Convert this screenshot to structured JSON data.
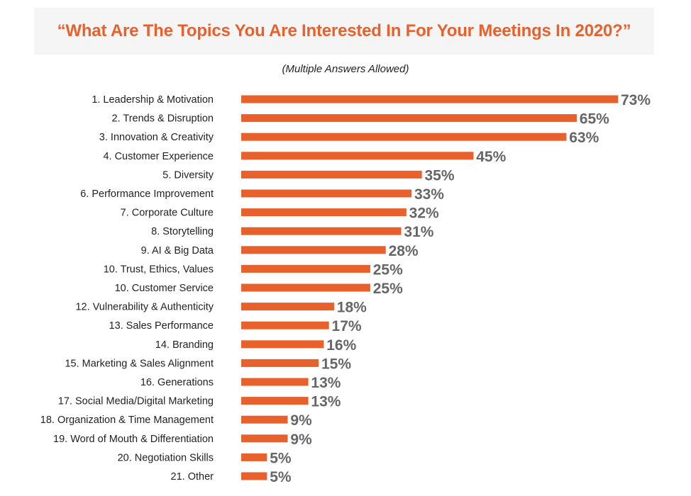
{
  "chart_data": {
    "type": "bar",
    "orientation": "horizontal",
    "title": "“What Are The Topics You Are Interested In For Your Meetings In 2020?”",
    "subtitle": "(Multiple Answers Allowed)",
    "categories": [
      "1. Leadership & Motivation",
      "2. Trends & Disruption",
      "3. Innovation & Creativity",
      "4. Customer Experience",
      "5. Diversity",
      "6. Performance Improvement",
      "7. Corporate Culture",
      "8. Storytelling",
      "9. AI & Big Data",
      "10. Trust, Ethics, Values",
      "10. Customer Service",
      "12.  Vulnerability & Authenticity",
      "13. Sales Performance",
      "14. Branding",
      "15. Marketing & Sales Alignment",
      "16. Generations",
      "17. Social Media/Digital Marketing",
      "18. Organization & Time Management",
      "19. Word of Mouth & Differentiation",
      "20. Negotiation Skills",
      "21. Other"
    ],
    "values": [
      73,
      65,
      63,
      45,
      35,
      33,
      32,
      31,
      28,
      25,
      25,
      18,
      17,
      16,
      15,
      13,
      13,
      9,
      9,
      5,
      5
    ],
    "value_labels": [
      "73%",
      "65%",
      "63%",
      "45%",
      "35%",
      "33%",
      "32%",
      "31%",
      "28%",
      "25%",
      "25%",
      "18%",
      "17%",
      "16%",
      "15%",
      "13%",
      "13%",
      "9%",
      "9%",
      "5%",
      "5%"
    ],
    "unit": "%",
    "xlim": [
      -3,
      73
    ],
    "grid": false,
    "legend": "none",
    "colors": {
      "bar": "#e8612c",
      "title": "#e8612c",
      "value_label": "#666666",
      "title_background": "#f5f5f5"
    }
  }
}
